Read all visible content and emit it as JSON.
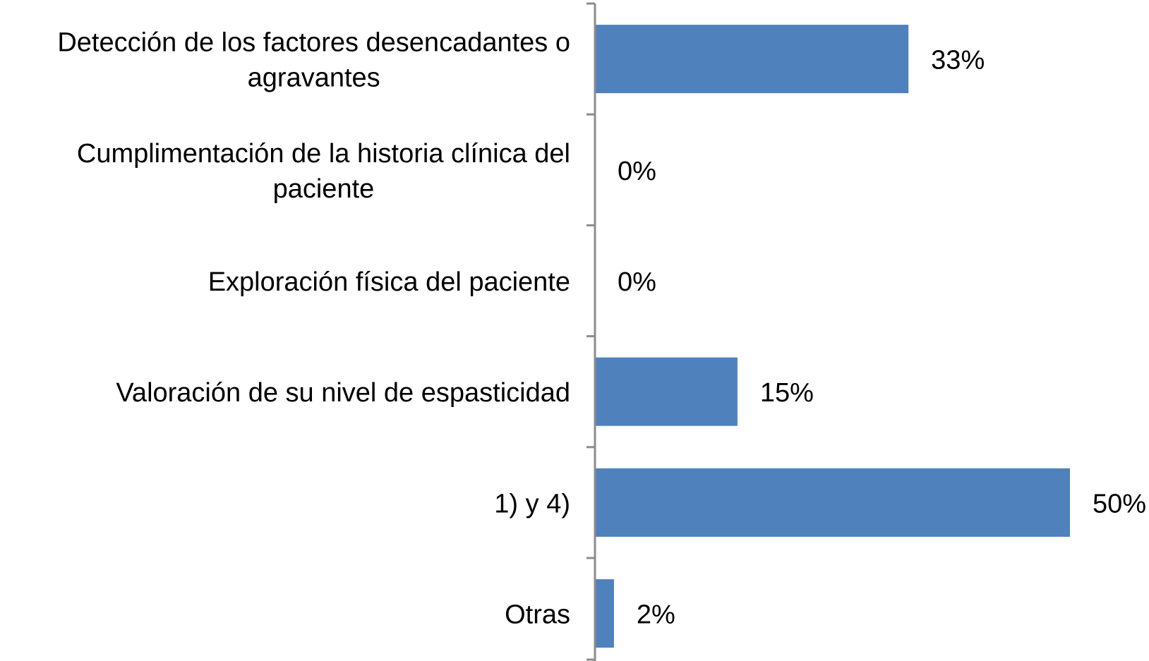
{
  "chart_data": {
    "type": "bar",
    "orientation": "horizontal",
    "title": "",
    "xlabel": "",
    "ylabel": "",
    "xlim": [
      0,
      50
    ],
    "grid": false,
    "legend": "none",
    "bar_color": "#4F81BD",
    "axis_color": "#8C8C8C",
    "categories": [
      [
        "Detección de los factores desencadantes o",
        "agravantes"
      ],
      [
        "Cumplimentación de la historia clínica del",
        "paciente"
      ],
      [
        "Exploración física del paciente"
      ],
      [
        "Valoración de su nivel de espasticidad"
      ],
      [
        "1) y 4)"
      ],
      [
        "Otras"
      ]
    ],
    "values": [
      33,
      0,
      0,
      15,
      50,
      2
    ],
    "value_labels": [
      "33%",
      "0%",
      "0%",
      "15%",
      "50%",
      "2%"
    ]
  }
}
